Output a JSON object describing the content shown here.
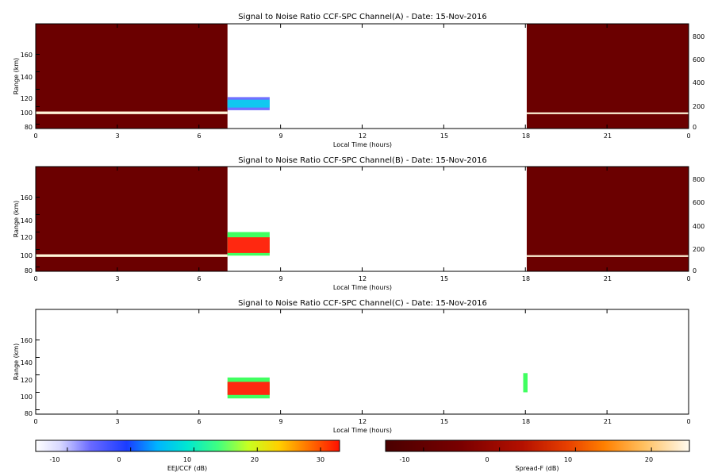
{
  "chart_data": [
    {
      "type": "heatmap",
      "title": "Signal to Noise Ratio CCF-SPC Channel(A) - Date: 15-Nov-2016",
      "xlabel": "Local Time (hours)",
      "ylabel": "Range (km)",
      "x_ticks": [
        "0",
        "3",
        "6",
        "9",
        "12",
        "15",
        "18",
        "21",
        "0"
      ],
      "y_ticks": [
        "80",
        "100",
        "120",
        "140",
        "160"
      ],
      "right_ticks": [
        "0",
        "200",
        "400",
        "600",
        "800"
      ],
      "xlim": [
        0,
        24
      ],
      "ylim": [
        75,
        195
      ],
      "right_ylim": [
        0,
        900
      ],
      "regions": [
        {
          "scale": "spread_f",
          "x": [
            0,
            7.05
          ],
          "y": [
            75,
            195
          ],
          "value": -8
        },
        {
          "scale": "spread_f",
          "x": [
            0,
            7.05
          ],
          "y": [
            91.5,
            94.5
          ],
          "value": 18
        },
        {
          "scale": "spread_f",
          "x": [
            18.05,
            24
          ],
          "y": [
            75,
            195
          ],
          "value": -8
        },
        {
          "scale": "spread_f",
          "x": [
            18.05,
            24
          ],
          "y": [
            91.5,
            93.5
          ],
          "value": 14
        },
        {
          "scale": "eej",
          "x": [
            7.05,
            8.6
          ],
          "y": [
            96,
            111
          ],
          "value": -6
        },
        {
          "scale": "eej",
          "x": [
            7.05,
            8.6
          ],
          "y": [
            99,
            108
          ],
          "value": 5
        }
      ]
    },
    {
      "type": "heatmap",
      "title": "Signal to Noise Ratio CCF-SPC Channel(B) - Date: 15-Nov-2016",
      "xlabel": "Local Time (hours)",
      "ylabel": "Range (km)",
      "x_ticks": [
        "0",
        "3",
        "6",
        "9",
        "12",
        "15",
        "18",
        "21",
        "0"
      ],
      "y_ticks": [
        "80",
        "100",
        "120",
        "140",
        "160"
      ],
      "right_ticks": [
        "0",
        "200",
        "400",
        "600",
        "800"
      ],
      "xlim": [
        0,
        24
      ],
      "ylim": [
        75,
        195
      ],
      "right_ylim": [
        0,
        900
      ],
      "regions": [
        {
          "scale": "spread_f",
          "x": [
            0,
            7.05
          ],
          "y": [
            75,
            195
          ],
          "value": -8
        },
        {
          "scale": "spread_f",
          "x": [
            0,
            7.05
          ],
          "y": [
            91.5,
            94.5
          ],
          "value": 18
        },
        {
          "scale": "spread_f",
          "x": [
            18.05,
            24
          ],
          "y": [
            75,
            195
          ],
          "value": -8
        },
        {
          "scale": "spread_f",
          "x": [
            18.05,
            24
          ],
          "y": [
            91.5,
            93.5
          ],
          "value": 14
        },
        {
          "scale": "eej",
          "x": [
            7.05,
            8.6
          ],
          "y": [
            93,
            120
          ],
          "value": 12
        },
        {
          "scale": "eej",
          "x": [
            7.05,
            8.6
          ],
          "y": [
            96,
            114
          ],
          "value": 28
        }
      ]
    },
    {
      "type": "heatmap",
      "title": "Signal to Noise Ratio CCF-SPC Channel(C) - Date: 15-Nov-2016",
      "xlabel": "Local Time (hours)",
      "ylabel": "Range (km)",
      "x_ticks": [
        "0",
        "3",
        "6",
        "9",
        "12",
        "15",
        "18",
        "21",
        "0"
      ],
      "y_ticks": [
        "80",
        "100",
        "120",
        "140",
        "160"
      ],
      "xlim": [
        0,
        24
      ],
      "ylim": [
        75,
        195
      ],
      "regions": [
        {
          "scale": "eej",
          "x": [
            7.05,
            8.6
          ],
          "y": [
            93,
            117
          ],
          "value": 12
        },
        {
          "scale": "eej",
          "x": [
            7.05,
            8.6
          ],
          "y": [
            97,
            112
          ],
          "value": 28
        },
        {
          "scale": "eej",
          "x": [
            17.92,
            18.08
          ],
          "y": [
            100,
            122
          ],
          "value": 15
        }
      ]
    }
  ],
  "colorbars": [
    {
      "label": "EEJ/CCF (dB)",
      "ticks": [
        "-10",
        "0",
        "10",
        "20",
        "30"
      ],
      "range": [
        -15,
        33
      ],
      "tick_values": [
        -10,
        0,
        10,
        20,
        30
      ]
    },
    {
      "label": "Spread-F (dB)",
      "ticks": [
        "-10",
        "0",
        "10",
        "20"
      ],
      "range": [
        -15,
        25
      ],
      "tick_values": [
        -10,
        0,
        10,
        20
      ]
    }
  ],
  "colors": {
    "spread_f_background": "#6b0000",
    "eej_low": "#2a2ae0",
    "eej_mid": "#00e0e0",
    "eej_high": "#ff2000"
  }
}
